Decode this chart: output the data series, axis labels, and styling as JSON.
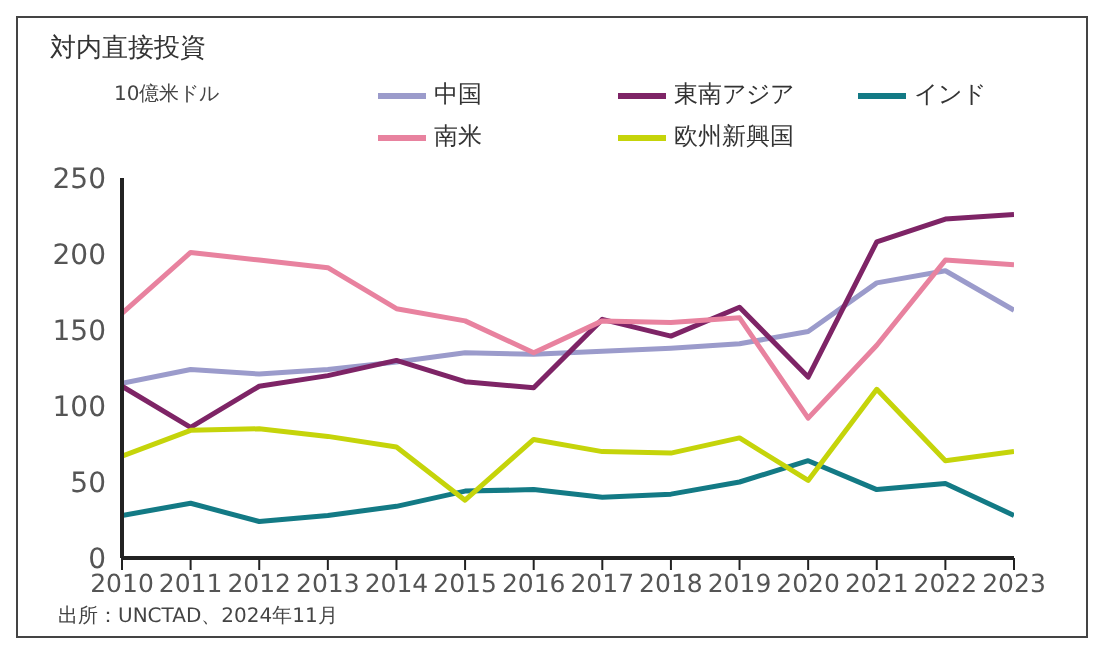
{
  "chart_data": {
    "type": "line",
    "title": "対内直接投資",
    "ylabel": "10億米ドル",
    "x": [
      2010,
      2011,
      2012,
      2013,
      2014,
      2015,
      2016,
      2017,
      2018,
      2019,
      2020,
      2021,
      2022,
      2023
    ],
    "xlim": [
      2010,
      2023
    ],
    "xticks": [
      2010,
      2011,
      2012,
      2013,
      2014,
      2015,
      2016,
      2017,
      2018,
      2019,
      2020,
      2021,
      2022,
      2023
    ],
    "ylim": [
      0,
      250
    ],
    "yticks": [
      0,
      50,
      100,
      150,
      200,
      250
    ],
    "grid": false,
    "legend": "top",
    "marker": "none",
    "line_style": "solid",
    "series": [
      {
        "name": "中国",
        "color": "#9b9bcb",
        "values": [
          115,
          124,
          121,
          124,
          129,
          135,
          134,
          136,
          138,
          141,
          149,
          181,
          189,
          163
        ]
      },
      {
        "name": "東南アジア",
        "color": "#7e2466",
        "values": [
          113,
          86,
          113,
          120,
          130,
          116,
          112,
          157,
          146,
          165,
          119,
          208,
          223,
          226
        ]
      },
      {
        "name": "インド",
        "color": "#137a85",
        "values": [
          28,
          36,
          24,
          28,
          34,
          44,
          45,
          40,
          42,
          50,
          64,
          45,
          49,
          28
        ]
      },
      {
        "name": "南米",
        "color": "#e8829f",
        "values": [
          161,
          201,
          196,
          191,
          164,
          156,
          135,
          156,
          155,
          158,
          92,
          140,
          196,
          193
        ]
      },
      {
        "name": "欧州新興国",
        "color": "#c5d40a",
        "values": [
          67,
          84,
          85,
          80,
          73,
          38,
          78,
          70,
          69,
          79,
          51,
          111,
          64,
          70
        ]
      }
    ],
    "annotations": [
      "出所：UNCTAD、2024年11月"
    ]
  }
}
